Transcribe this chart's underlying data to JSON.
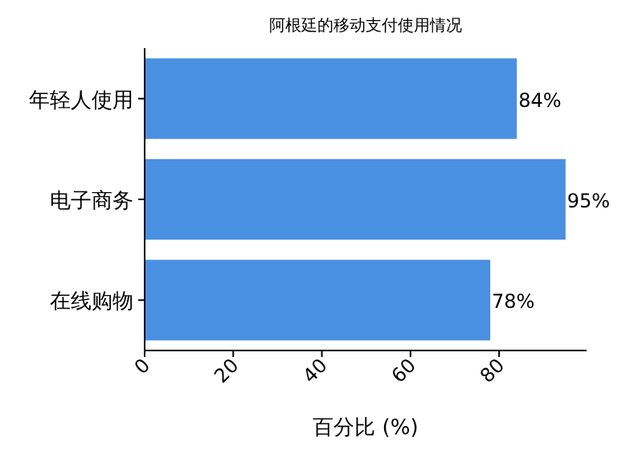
{
  "chart_data": {
    "type": "bar",
    "orientation": "horizontal",
    "title": "阿根廷的移动支付使用情况",
    "xlabel": "百分比 (%)",
    "categories": [
      "年轻人使用",
      "电子商务",
      "在线购物"
    ],
    "values": [
      84,
      95,
      78
    ],
    "color": "#4a90e2",
    "value_labels": [
      "84%",
      "95%",
      "78%"
    ],
    "xlim": [
      0,
      99.75
    ],
    "xticks": [
      0,
      20,
      40,
      60,
      80
    ]
  }
}
